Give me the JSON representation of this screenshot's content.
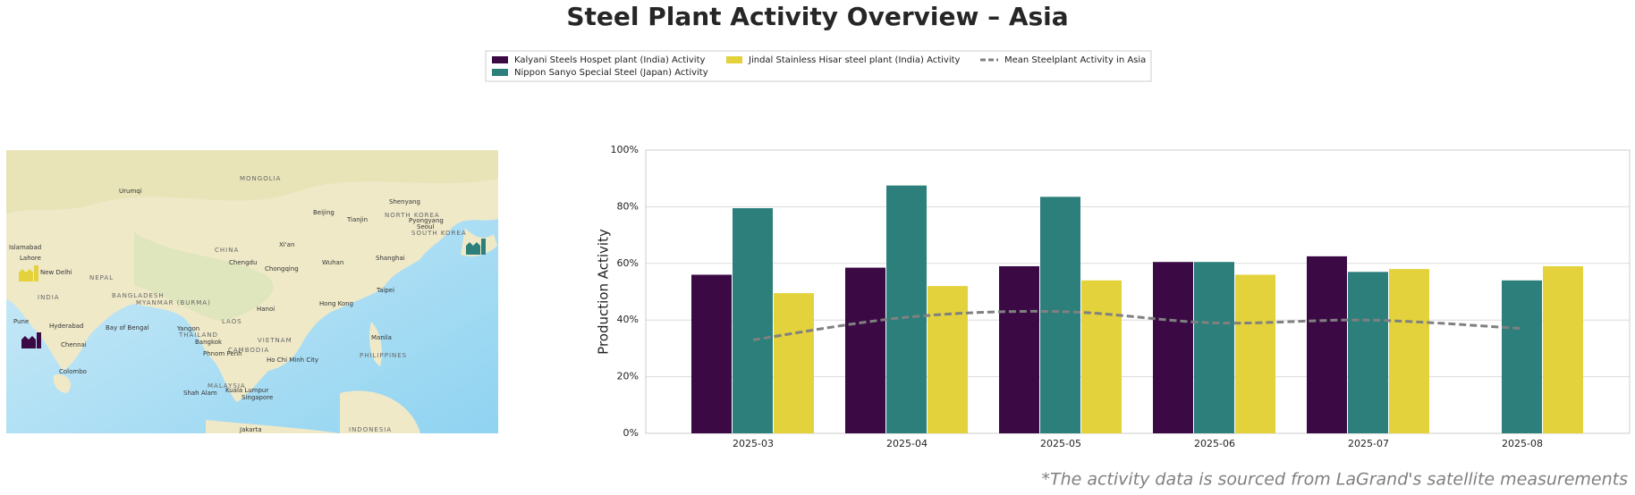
{
  "chart_data": {
    "type": "bar",
    "title": "Steel Plant Activity Overview – Asia",
    "ylabel": "Production Activity",
    "footnote": "*The activity data is sourced from LaGrand's satellite measurements",
    "categories": [
      "2025-03",
      "2025-04",
      "2025-05",
      "2025-06",
      "2025-07",
      "2025-08"
    ],
    "series": [
      {
        "name": "Kalyani Steels Hospet plant (India) Activity",
        "color": "#3b0a45",
        "values": [
          56,
          58.5,
          59,
          60.5,
          62.5,
          null
        ]
      },
      {
        "name": "Nippon Sanyo Special Steel (Japan) Activity",
        "color": "#2c7f7b",
        "values": [
          79.5,
          87.5,
          83.5,
          60.5,
          57,
          54
        ]
      },
      {
        "name": "Jindal Stainless Hisar steel plant (India) Activity",
        "color": "#e3d23b",
        "values": [
          49.5,
          52,
          54,
          56,
          58,
          59
        ]
      }
    ],
    "mean_line": {
      "name": "Mean Steelplant Activity in Asia",
      "color": "#808080",
      "values": [
        33,
        41,
        43,
        39,
        40,
        37
      ]
    },
    "ylim": [
      0,
      100
    ],
    "yticks": [
      {
        "value": 0,
        "label": "0%"
      },
      {
        "value": 20,
        "label": "20%"
      },
      {
        "value": 40,
        "label": "40%"
      },
      {
        "value": 60,
        "label": "60%"
      },
      {
        "value": 80,
        "label": "80%"
      },
      {
        "value": 100,
        "label": "100%"
      }
    ],
    "grid": true,
    "map_labels": [
      "Urumqi",
      "MONGOLIA",
      "Islamabad",
      "Lahore",
      "New Delhi",
      "NEPAL",
      "Beijing",
      "Tianjin",
      "Shenyang",
      "NORTH KOREA",
      "Pyongyang",
      "Seoul",
      "SOUTH KOREA",
      "CHINA",
      "Xi'an",
      "Chengdu",
      "Chongqing",
      "Wuhan",
      "Shanghai",
      "INDIA",
      "BANGLADESH",
      "MYANMAR (BURMA)",
      "Taipei",
      "Hanoi",
      "Hong Kong",
      "Pune",
      "Hyderabad",
      "Bay of Bengal",
      "Yangon",
      "THAILAND",
      "Bangkok",
      "LAOS",
      "VIETNAM",
      "CAMBODIA",
      "Phnom Penh",
      "Ho Chi Minh City",
      "Chennai",
      "Manila",
      "PHILIPPINES",
      "Colombo",
      "MALAYSIA",
      "Kuala Lumpur",
      "Shah Alam",
      "Singapore",
      "Jakarta",
      "INDONESIA"
    ]
  }
}
